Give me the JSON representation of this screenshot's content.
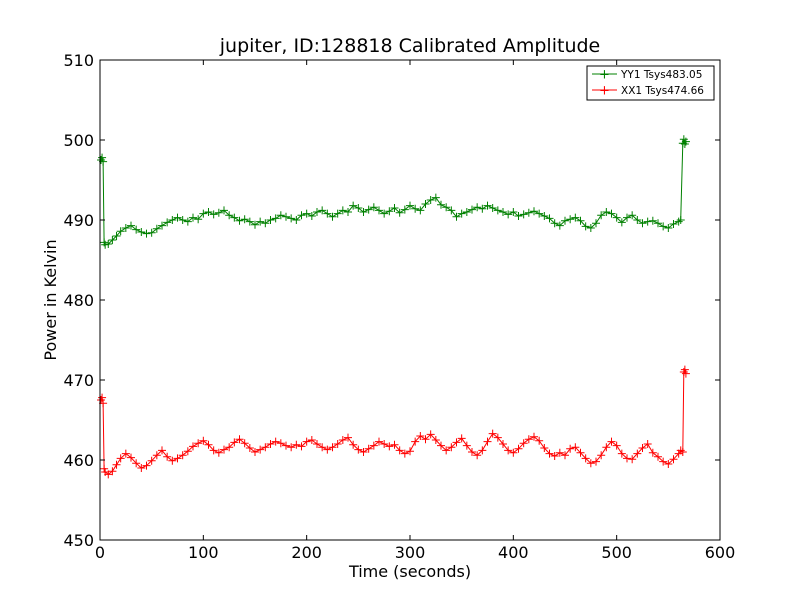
{
  "chart_data": {
    "type": "line",
    "title": "jupiter, ID:128818 Calibrated Amplitude",
    "xlabel": "Time (seconds)",
    "ylabel": "Power in Kelvin",
    "xlim": [
      0,
      600
    ],
    "ylim": [
      450,
      510
    ],
    "xticks": [
      0,
      100,
      200,
      300,
      400,
      500,
      600
    ],
    "yticks": [
      450,
      460,
      470,
      480,
      490,
      500,
      510
    ],
    "grid": false,
    "legend_position": "top-right",
    "marker": "+",
    "series": [
      {
        "name": "YY1 Tsys483.05",
        "color": "#008000",
        "x": [
          1,
          2,
          3,
          4,
          5,
          8,
          12,
          16,
          20,
          25,
          30,
          35,
          40,
          45,
          50,
          55,
          60,
          65,
          70,
          75,
          80,
          85,
          90,
          95,
          100,
          105,
          110,
          115,
          120,
          125,
          130,
          135,
          140,
          145,
          150,
          155,
          160,
          165,
          170,
          175,
          180,
          185,
          190,
          195,
          200,
          205,
          210,
          215,
          220,
          225,
          230,
          235,
          240,
          245,
          250,
          255,
          260,
          265,
          270,
          275,
          280,
          285,
          290,
          295,
          300,
          305,
          310,
          315,
          320,
          325,
          330,
          335,
          340,
          345,
          350,
          355,
          360,
          365,
          370,
          375,
          380,
          385,
          390,
          395,
          400,
          405,
          410,
          415,
          420,
          425,
          430,
          435,
          440,
          445,
          450,
          455,
          460,
          465,
          470,
          475,
          480,
          485,
          490,
          495,
          500,
          505,
          510,
          515,
          520,
          525,
          530,
          535,
          540,
          545,
          550,
          555,
          560,
          562,
          564,
          565,
          566,
          567
        ],
        "values": [
          497.5,
          497.8,
          497.3,
          487.2,
          486.9,
          487.0,
          487.5,
          488.0,
          488.6,
          489.0,
          489.3,
          488.8,
          488.5,
          488.3,
          488.4,
          488.9,
          489.3,
          489.7,
          490.0,
          490.3,
          490.0,
          489.8,
          490.3,
          490.1,
          490.8,
          491.0,
          490.7,
          490.9,
          491.2,
          490.6,
          490.3,
          489.9,
          490.1,
          489.8,
          489.4,
          489.8,
          489.6,
          490.0,
          490.2,
          490.6,
          490.4,
          490.2,
          490.0,
          490.6,
          490.8,
          490.5,
          491.0,
          491.2,
          490.8,
          490.4,
          490.8,
          491.2,
          491.0,
          491.8,
          491.5,
          491.0,
          491.3,
          491.6,
          491.2,
          490.8,
          491.1,
          491.5,
          490.9,
          491.3,
          491.8,
          491.4,
          491.2,
          492.0,
          492.5,
          492.8,
          491.9,
          491.6,
          491.2,
          490.4,
          490.8,
          491.0,
          491.3,
          491.6,
          491.4,
          491.8,
          491.5,
          491.2,
          491.0,
          490.7,
          491.0,
          490.5,
          490.7,
          490.9,
          491.1,
          490.8,
          490.5,
          490.2,
          489.6,
          489.3,
          489.9,
          490.1,
          490.3,
          489.9,
          489.2,
          489.0,
          489.6,
          490.6,
          491.0,
          490.8,
          490.3,
          489.7,
          490.3,
          490.6,
          490.0,
          489.6,
          489.8,
          489.9,
          489.6,
          489.2,
          489.0,
          489.5,
          489.8,
          490.0,
          499.6,
          500.1,
          499.5,
          499.8
        ]
      },
      {
        "name": "XX1 Tsys474.66",
        "color": "#ff0000",
        "x": [
          1,
          2,
          3,
          4,
          5,
          8,
          12,
          16,
          20,
          25,
          30,
          35,
          40,
          45,
          50,
          55,
          60,
          65,
          70,
          75,
          80,
          85,
          90,
          95,
          100,
          105,
          110,
          115,
          120,
          125,
          130,
          135,
          140,
          145,
          150,
          155,
          160,
          165,
          170,
          175,
          180,
          185,
          190,
          195,
          200,
          205,
          210,
          215,
          220,
          225,
          230,
          235,
          240,
          245,
          250,
          255,
          260,
          265,
          270,
          275,
          280,
          285,
          290,
          295,
          300,
          305,
          310,
          315,
          320,
          325,
          330,
          335,
          340,
          345,
          350,
          355,
          360,
          365,
          370,
          375,
          380,
          385,
          390,
          395,
          400,
          405,
          410,
          415,
          420,
          425,
          430,
          435,
          440,
          445,
          450,
          455,
          460,
          465,
          470,
          475,
          480,
          485,
          490,
          495,
          500,
          505,
          510,
          515,
          520,
          525,
          530,
          535,
          540,
          545,
          550,
          555,
          560,
          562,
          564,
          565,
          566,
          567
        ],
        "values": [
          467.5,
          467.8,
          467.1,
          458.9,
          458.5,
          458.2,
          458.6,
          459.4,
          460.2,
          460.8,
          460.3,
          459.6,
          459.0,
          459.3,
          459.9,
          460.6,
          461.2,
          460.4,
          459.9,
          460.2,
          460.6,
          461.1,
          461.7,
          462.1,
          462.4,
          461.9,
          461.2,
          460.9,
          461.3,
          461.6,
          462.2,
          462.6,
          462.1,
          461.5,
          461.0,
          461.3,
          461.6,
          462.0,
          462.3,
          462.1,
          461.8,
          461.6,
          461.9,
          461.7,
          462.3,
          462.5,
          462.0,
          461.6,
          461.3,
          461.6,
          462.0,
          462.5,
          462.8,
          461.9,
          461.3,
          461.0,
          461.4,
          461.8,
          462.3,
          462.0,
          461.7,
          461.9,
          461.2,
          460.8,
          461.1,
          462.3,
          463.0,
          462.6,
          463.2,
          462.5,
          461.8,
          461.2,
          461.6,
          462.2,
          462.7,
          461.8,
          461.0,
          460.6,
          461.2,
          462.3,
          463.3,
          462.8,
          462.0,
          461.2,
          460.9,
          461.4,
          462.1,
          462.6,
          462.9,
          462.4,
          461.5,
          460.8,
          460.5,
          460.9,
          460.6,
          461.4,
          461.6,
          460.9,
          460.2,
          459.6,
          459.8,
          460.6,
          461.6,
          462.3,
          461.8,
          460.8,
          460.2,
          460.1,
          460.8,
          461.5,
          462.0,
          460.9,
          460.4,
          459.8,
          459.5,
          460.1,
          460.8,
          461.2,
          461.0,
          471.0,
          471.3,
          470.8
        ]
      }
    ]
  }
}
